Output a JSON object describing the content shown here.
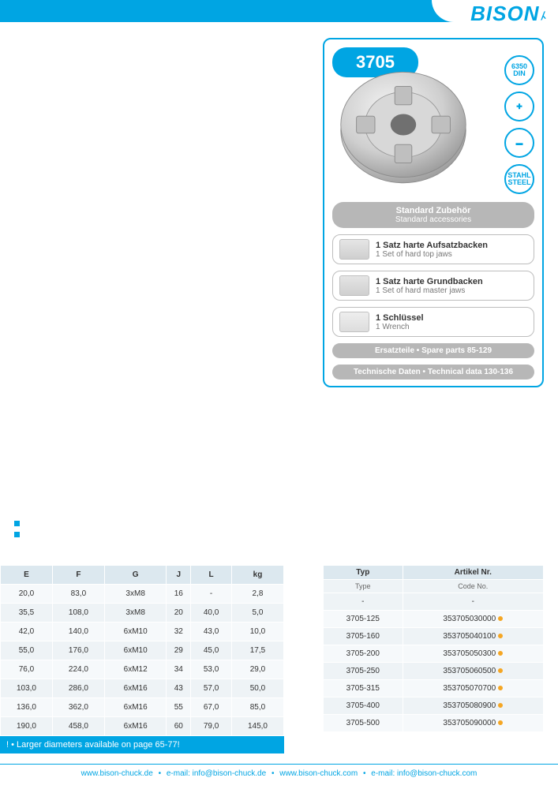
{
  "brand": "BISON",
  "product_code": "3705",
  "badges": [
    "6350 DIN",
    "✚",
    "▬",
    "STAHL STEEL"
  ],
  "accessories_header": {
    "de": "Standard Zubehör",
    "en": "Standard accessories"
  },
  "accessories": [
    {
      "de": "1 Satz harte Aufsatzbacken",
      "en": "1 Set of hard top jaws"
    },
    {
      "de": "1 Satz harte Grundbacken",
      "en": "1 Set of hard master jaws"
    },
    {
      "de": "1 Schlüssel",
      "en": "1 Wrench"
    }
  ],
  "spare_parts": {
    "label": "Ersatzteile • Spare parts",
    "pages": "85-129"
  },
  "tech_data": {
    "label": "Technische Daten • Technical data",
    "pages": "130-136"
  },
  "specs_table": {
    "columns": [
      "E",
      "F",
      "G",
      "J",
      "L",
      "kg"
    ],
    "rows": [
      [
        "20,0",
        "83,0",
        "3xM8",
        "16",
        "-",
        "2,8"
      ],
      [
        "35,5",
        "108,0",
        "3xM8",
        "20",
        "40,0",
        "5,0"
      ],
      [
        "42,0",
        "140,0",
        "6xM10",
        "32",
        "43,0",
        "10,0"
      ],
      [
        "55,0",
        "176,0",
        "6xM10",
        "29",
        "45,0",
        "17,5"
      ],
      [
        "76,0",
        "224,0",
        "6xM12",
        "34",
        "53,0",
        "29,0"
      ],
      [
        "103,0",
        "286,0",
        "6xM16",
        "43",
        "57,0",
        "50,0"
      ],
      [
        "136,0",
        "362,0",
        "6xM16",
        "55",
        "67,0",
        "85,0"
      ],
      [
        "190,0",
        "458,0",
        "6xM16",
        "60",
        "79,0",
        "145,0"
      ]
    ],
    "header_bg": "#dce8ef",
    "row_bg_odd": "#f6f9fb",
    "row_bg_even": "#eef3f6"
  },
  "note_bar": "! • Larger diameters available on page 65-77!",
  "types_table": {
    "head": {
      "col1_de": "Typ",
      "col1_en": "Type",
      "col2_de": "Artikel Nr.",
      "col2_en": "Code No."
    },
    "rows": [
      [
        "-",
        "-"
      ],
      [
        "3705-125",
        "353705030000"
      ],
      [
        "3705-160",
        "353705040100"
      ],
      [
        "3705-200",
        "353705050300"
      ],
      [
        "3705-250",
        "353705060500"
      ],
      [
        "3705-315",
        "353705070700"
      ],
      [
        "3705-400",
        "353705080900"
      ],
      [
        "3705-500",
        "353705090000"
      ]
    ]
  },
  "footer": {
    "items": [
      "www.bison-chuck.de",
      "e-mail: info@bison-chuck.de",
      "www.bison-chuck.com",
      "e-mail: info@bison-chuck.com"
    ]
  },
  "colors": {
    "brand": "#00a5e3",
    "grey": "#b7b7b7"
  }
}
